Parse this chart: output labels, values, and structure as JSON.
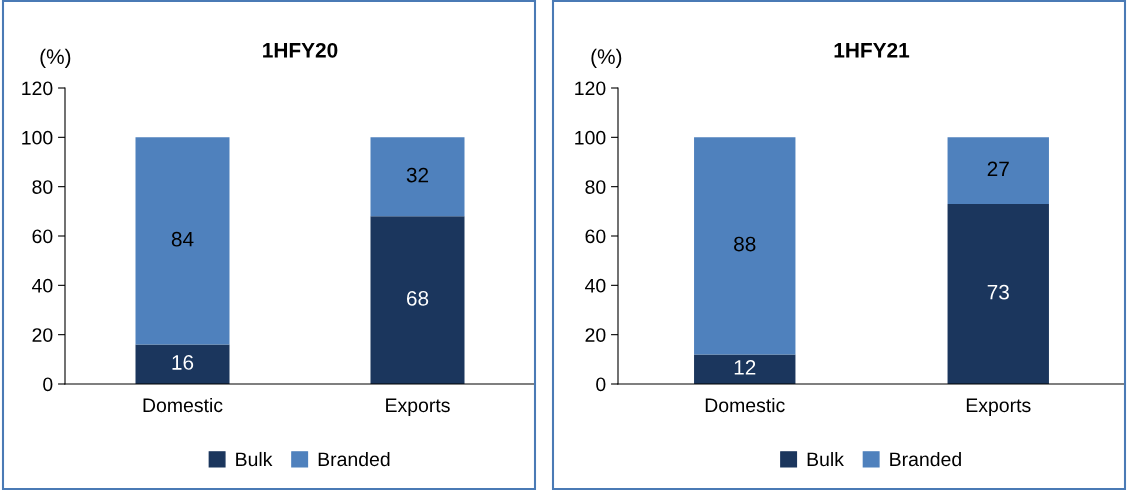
{
  "chart_data": [
    {
      "type": "bar",
      "title": "1HFY20",
      "ylabel": "(%)",
      "categories": [
        "Domestic",
        "Exports"
      ],
      "stacked": true,
      "ylim": [
        0,
        120
      ],
      "yticks": [
        0,
        20,
        40,
        60,
        80,
        100,
        120
      ],
      "data_labels": true,
      "legend": "bottom",
      "grid": false,
      "series": [
        {
          "name": "Bulk",
          "color": "#1b365d",
          "values": [
            16,
            68
          ]
        },
        {
          "name": "Branded",
          "color": "#4f81bd",
          "values": [
            84,
            32
          ]
        }
      ]
    },
    {
      "type": "bar",
      "title": "1HFY21",
      "ylabel": "(%)",
      "categories": [
        "Domestic",
        "Exports"
      ],
      "stacked": true,
      "ylim": [
        0,
        120
      ],
      "yticks": [
        0,
        20,
        40,
        60,
        80,
        100,
        120
      ],
      "data_labels": true,
      "legend": "bottom",
      "grid": false,
      "series": [
        {
          "name": "Bulk",
          "color": "#1b365d",
          "values": [
            12,
            73
          ]
        },
        {
          "name": "Branded",
          "color": "#4f81bd",
          "values": [
            88,
            27
          ]
        }
      ]
    }
  ]
}
